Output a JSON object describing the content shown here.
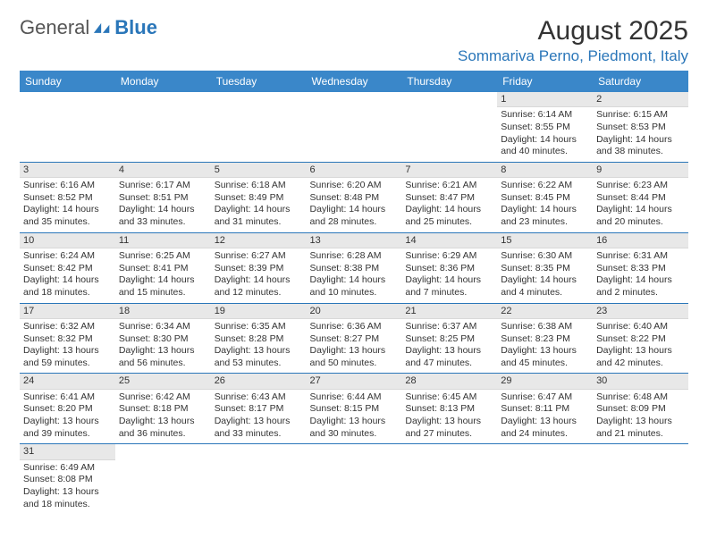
{
  "brand": {
    "part1": "General",
    "part2": "Blue"
  },
  "title": "August 2025",
  "location": "Sommariva Perno, Piedmont, Italy",
  "colors": {
    "brand_blue": "#2a76b9",
    "header_bg": "#3a87c9",
    "day_header_bg": "#e8e8e8",
    "rule": "#2a76b9",
    "text": "#2b2b2b"
  },
  "weekdays": [
    "Sunday",
    "Monday",
    "Tuesday",
    "Wednesday",
    "Thursday",
    "Friday",
    "Saturday"
  ],
  "weeks": [
    [
      null,
      null,
      null,
      null,
      null,
      {
        "n": "1",
        "sr": "Sunrise: 6:14 AM",
        "ss": "Sunset: 8:55 PM",
        "dl": "Daylight: 14 hours and 40 minutes."
      },
      {
        "n": "2",
        "sr": "Sunrise: 6:15 AM",
        "ss": "Sunset: 8:53 PM",
        "dl": "Daylight: 14 hours and 38 minutes."
      }
    ],
    [
      {
        "n": "3",
        "sr": "Sunrise: 6:16 AM",
        "ss": "Sunset: 8:52 PM",
        "dl": "Daylight: 14 hours and 35 minutes."
      },
      {
        "n": "4",
        "sr": "Sunrise: 6:17 AM",
        "ss": "Sunset: 8:51 PM",
        "dl": "Daylight: 14 hours and 33 minutes."
      },
      {
        "n": "5",
        "sr": "Sunrise: 6:18 AM",
        "ss": "Sunset: 8:49 PM",
        "dl": "Daylight: 14 hours and 31 minutes."
      },
      {
        "n": "6",
        "sr": "Sunrise: 6:20 AM",
        "ss": "Sunset: 8:48 PM",
        "dl": "Daylight: 14 hours and 28 minutes."
      },
      {
        "n": "7",
        "sr": "Sunrise: 6:21 AM",
        "ss": "Sunset: 8:47 PM",
        "dl": "Daylight: 14 hours and 25 minutes."
      },
      {
        "n": "8",
        "sr": "Sunrise: 6:22 AM",
        "ss": "Sunset: 8:45 PM",
        "dl": "Daylight: 14 hours and 23 minutes."
      },
      {
        "n": "9",
        "sr": "Sunrise: 6:23 AM",
        "ss": "Sunset: 8:44 PM",
        "dl": "Daylight: 14 hours and 20 minutes."
      }
    ],
    [
      {
        "n": "10",
        "sr": "Sunrise: 6:24 AM",
        "ss": "Sunset: 8:42 PM",
        "dl": "Daylight: 14 hours and 18 minutes."
      },
      {
        "n": "11",
        "sr": "Sunrise: 6:25 AM",
        "ss": "Sunset: 8:41 PM",
        "dl": "Daylight: 14 hours and 15 minutes."
      },
      {
        "n": "12",
        "sr": "Sunrise: 6:27 AM",
        "ss": "Sunset: 8:39 PM",
        "dl": "Daylight: 14 hours and 12 minutes."
      },
      {
        "n": "13",
        "sr": "Sunrise: 6:28 AM",
        "ss": "Sunset: 8:38 PM",
        "dl": "Daylight: 14 hours and 10 minutes."
      },
      {
        "n": "14",
        "sr": "Sunrise: 6:29 AM",
        "ss": "Sunset: 8:36 PM",
        "dl": "Daylight: 14 hours and 7 minutes."
      },
      {
        "n": "15",
        "sr": "Sunrise: 6:30 AM",
        "ss": "Sunset: 8:35 PM",
        "dl": "Daylight: 14 hours and 4 minutes."
      },
      {
        "n": "16",
        "sr": "Sunrise: 6:31 AM",
        "ss": "Sunset: 8:33 PM",
        "dl": "Daylight: 14 hours and 2 minutes."
      }
    ],
    [
      {
        "n": "17",
        "sr": "Sunrise: 6:32 AM",
        "ss": "Sunset: 8:32 PM",
        "dl": "Daylight: 13 hours and 59 minutes."
      },
      {
        "n": "18",
        "sr": "Sunrise: 6:34 AM",
        "ss": "Sunset: 8:30 PM",
        "dl": "Daylight: 13 hours and 56 minutes."
      },
      {
        "n": "19",
        "sr": "Sunrise: 6:35 AM",
        "ss": "Sunset: 8:28 PM",
        "dl": "Daylight: 13 hours and 53 minutes."
      },
      {
        "n": "20",
        "sr": "Sunrise: 6:36 AM",
        "ss": "Sunset: 8:27 PM",
        "dl": "Daylight: 13 hours and 50 minutes."
      },
      {
        "n": "21",
        "sr": "Sunrise: 6:37 AM",
        "ss": "Sunset: 8:25 PM",
        "dl": "Daylight: 13 hours and 47 minutes."
      },
      {
        "n": "22",
        "sr": "Sunrise: 6:38 AM",
        "ss": "Sunset: 8:23 PM",
        "dl": "Daylight: 13 hours and 45 minutes."
      },
      {
        "n": "23",
        "sr": "Sunrise: 6:40 AM",
        "ss": "Sunset: 8:22 PM",
        "dl": "Daylight: 13 hours and 42 minutes."
      }
    ],
    [
      {
        "n": "24",
        "sr": "Sunrise: 6:41 AM",
        "ss": "Sunset: 8:20 PM",
        "dl": "Daylight: 13 hours and 39 minutes."
      },
      {
        "n": "25",
        "sr": "Sunrise: 6:42 AM",
        "ss": "Sunset: 8:18 PM",
        "dl": "Daylight: 13 hours and 36 minutes."
      },
      {
        "n": "26",
        "sr": "Sunrise: 6:43 AM",
        "ss": "Sunset: 8:17 PM",
        "dl": "Daylight: 13 hours and 33 minutes."
      },
      {
        "n": "27",
        "sr": "Sunrise: 6:44 AM",
        "ss": "Sunset: 8:15 PM",
        "dl": "Daylight: 13 hours and 30 minutes."
      },
      {
        "n": "28",
        "sr": "Sunrise: 6:45 AM",
        "ss": "Sunset: 8:13 PM",
        "dl": "Daylight: 13 hours and 27 minutes."
      },
      {
        "n": "29",
        "sr": "Sunrise: 6:47 AM",
        "ss": "Sunset: 8:11 PM",
        "dl": "Daylight: 13 hours and 24 minutes."
      },
      {
        "n": "30",
        "sr": "Sunrise: 6:48 AM",
        "ss": "Sunset: 8:09 PM",
        "dl": "Daylight: 13 hours and 21 minutes."
      }
    ],
    [
      {
        "n": "31",
        "sr": "Sunrise: 6:49 AM",
        "ss": "Sunset: 8:08 PM",
        "dl": "Daylight: 13 hours and 18 minutes."
      },
      null,
      null,
      null,
      null,
      null,
      null
    ]
  ]
}
